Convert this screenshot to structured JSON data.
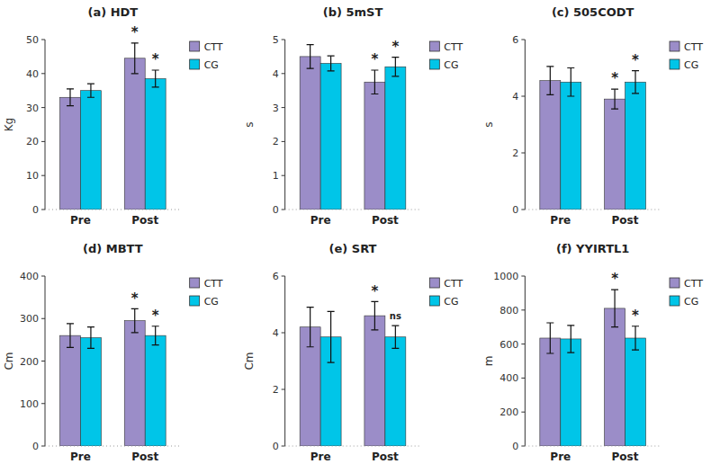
{
  "chart_data": [
    {
      "type": "bar",
      "title": "(a) HDT",
      "ylabel": "Kg",
      "categories": [
        "Pre",
        "Post"
      ],
      "series": [
        {
          "name": "CTT",
          "color": "#9B8DC8",
          "values": [
            33,
            44.5
          ],
          "errors": [
            2.5,
            4.5
          ],
          "annotations": [
            null,
            "*"
          ]
        },
        {
          "name": "CG",
          "color": "#00C5E8",
          "values": [
            35,
            38.5
          ],
          "errors": [
            2,
            2.5
          ],
          "annotations": [
            null,
            "*"
          ]
        }
      ],
      "ylim": [
        0,
        50
      ],
      "yticks": [
        0,
        10,
        20,
        30,
        40,
        50
      ],
      "grid": false,
      "legend": "upper right"
    },
    {
      "type": "bar",
      "title": "(b) 5mST",
      "ylabel": "s",
      "categories": [
        "Pre",
        "Post"
      ],
      "series": [
        {
          "name": "CTT",
          "color": "#9B8DC8",
          "values": [
            4.5,
            3.75
          ],
          "errors": [
            0.35,
            0.35
          ],
          "annotations": [
            null,
            "*"
          ]
        },
        {
          "name": "CG",
          "color": "#00C5E8",
          "values": [
            4.3,
            4.2
          ],
          "errors": [
            0.22,
            0.28
          ],
          "annotations": [
            null,
            "*"
          ]
        }
      ],
      "ylim": [
        0,
        5
      ],
      "yticks": [
        0,
        1,
        2,
        3,
        4,
        5
      ],
      "grid": false,
      "legend": "upper right"
    },
    {
      "type": "bar",
      "title": "(c) 505CODT",
      "ylabel": "s",
      "categories": [
        "Pre",
        "Post"
      ],
      "series": [
        {
          "name": "CTT",
          "color": "#9B8DC8",
          "values": [
            4.55,
            3.9
          ],
          "errors": [
            0.5,
            0.35
          ],
          "annotations": [
            null,
            "*"
          ]
        },
        {
          "name": "CG",
          "color": "#00C5E8",
          "values": [
            4.5,
            4.5
          ],
          "errors": [
            0.5,
            0.4
          ],
          "annotations": [
            null,
            "*"
          ]
        }
      ],
      "ylim": [
        0,
        6
      ],
      "yticks": [
        0,
        2,
        4,
        6
      ],
      "grid": false,
      "legend": "upper right"
    },
    {
      "type": "bar",
      "title": "(d) MBTT",
      "ylabel": "Cm",
      "categories": [
        "Pre",
        "Post"
      ],
      "series": [
        {
          "name": "CTT",
          "color": "#9B8DC8",
          "values": [
            260,
            295
          ],
          "errors": [
            28,
            28
          ],
          "annotations": [
            null,
            "*"
          ]
        },
        {
          "name": "CG",
          "color": "#00C5E8",
          "values": [
            255,
            260
          ],
          "errors": [
            25,
            22
          ],
          "annotations": [
            null,
            "*"
          ]
        }
      ],
      "ylim": [
        0,
        400
      ],
      "yticks": [
        0,
        100,
        200,
        300,
        400
      ],
      "grid": false,
      "legend": "upper right"
    },
    {
      "type": "bar",
      "title": "(e) SRT",
      "ylabel": "Cm",
      "categories": [
        "Pre",
        "Post"
      ],
      "series": [
        {
          "name": "CTT",
          "color": "#9B8DC8",
          "values": [
            4.2,
            4.6
          ],
          "errors": [
            0.7,
            0.5
          ],
          "annotations": [
            null,
            "*"
          ]
        },
        {
          "name": "CG",
          "color": "#00C5E8",
          "values": [
            3.85,
            3.85
          ],
          "errors": [
            0.9,
            0.4
          ],
          "annotations": [
            null,
            "ns"
          ]
        }
      ],
      "ylim": [
        0,
        6
      ],
      "yticks": [
        0,
        2,
        4,
        6
      ],
      "grid": false,
      "legend": "upper right"
    },
    {
      "type": "bar",
      "title": "(f) YYIRTL1",
      "ylabel": "m",
      "categories": [
        "Pre",
        "Post"
      ],
      "series": [
        {
          "name": "CTT",
          "color": "#9B8DC8",
          "values": [
            635,
            810
          ],
          "errors": [
            90,
            110
          ],
          "annotations": [
            null,
            "*"
          ]
        },
        {
          "name": "CG",
          "color": "#00C5E8",
          "values": [
            630,
            635
          ],
          "errors": [
            80,
            70
          ],
          "annotations": [
            null,
            "*"
          ]
        }
      ],
      "ylim": [
        0,
        1000
      ],
      "yticks": [
        0,
        200,
        400,
        600,
        800,
        1000
      ],
      "grid": false,
      "legend": "upper right"
    }
  ]
}
